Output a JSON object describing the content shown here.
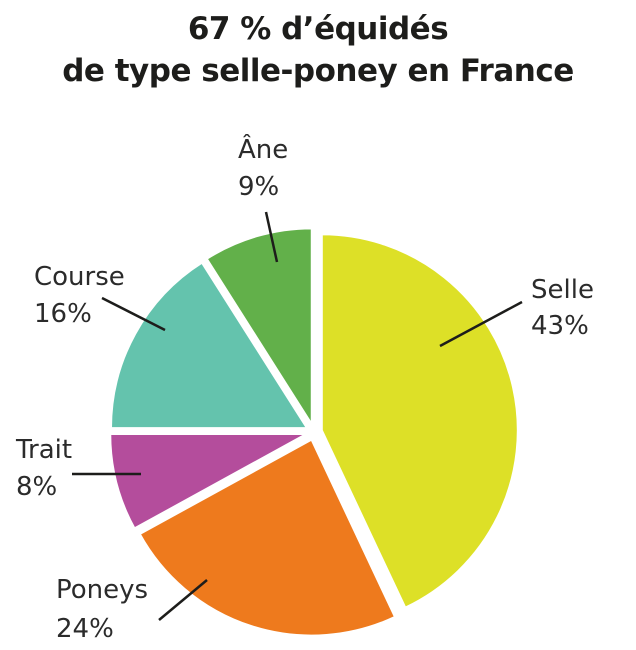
{
  "title_line1": "67 % d’équidés",
  "title_line2": "de type selle-poney en France",
  "chart_data": {
    "type": "pie",
    "title": "67 % d’équidés de type selle-poney en France",
    "slices": [
      {
        "label": "Selle",
        "pct_label": "43%",
        "value": 43,
        "color": "#dde027"
      },
      {
        "label": "Poneys",
        "pct_label": "24%",
        "value": 24,
        "color": "#ee7a1d"
      },
      {
        "label": "Trait",
        "pct_label": "8%",
        "value": 8,
        "color": "#b44d9c"
      },
      {
        "label": "Course",
        "pct_label": "16%",
        "value": 16,
        "color": "#64c3ad"
      },
      {
        "label": "Âne",
        "pct_label": "9%",
        "value": 9,
        "color": "#62b04a"
      }
    ],
    "start": "12 o'clock",
    "direction": "clockwise",
    "exploded": true
  }
}
